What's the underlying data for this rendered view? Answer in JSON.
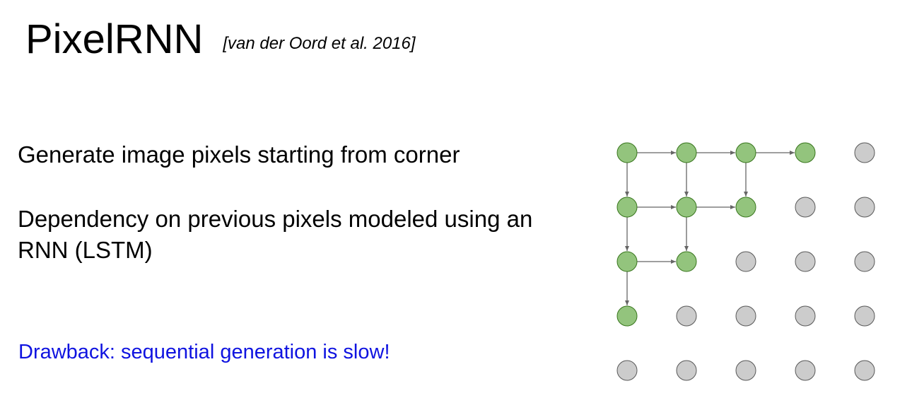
{
  "title": "PixelRNN",
  "citation": "[van der Oord et al. 2016]",
  "bullets": [
    "Generate image pixels starting from corner",
    "Dependency on previous pixels modeled using an RNN (LSTM)"
  ],
  "drawback": "Drawback: sequential generation is slow!",
  "colors": {
    "generated_fill": "#93c47d",
    "generated_stroke": "#38761d",
    "pending_fill": "#cccccc",
    "pending_stroke": "#595959",
    "arrow": "#666666",
    "drawback_text": "#0f13e0"
  },
  "pixel_grid": {
    "rows": 5,
    "cols": 5,
    "generated": [
      [
        true,
        true,
        true,
        true,
        false
      ],
      [
        true,
        true,
        true,
        false,
        false
      ],
      [
        true,
        true,
        false,
        false,
        false
      ],
      [
        true,
        false,
        false,
        false,
        false
      ],
      [
        false,
        false,
        false,
        false,
        false
      ]
    ],
    "arrows": [
      {
        "from": [
          0,
          0
        ],
        "to": [
          0,
          1
        ]
      },
      {
        "from": [
          0,
          1
        ],
        "to": [
          0,
          2
        ]
      },
      {
        "from": [
          0,
          2
        ],
        "to": [
          0,
          3
        ]
      },
      {
        "from": [
          0,
          0
        ],
        "to": [
          1,
          0
        ]
      },
      {
        "from": [
          0,
          1
        ],
        "to": [
          1,
          1
        ]
      },
      {
        "from": [
          0,
          2
        ],
        "to": [
          1,
          2
        ]
      },
      {
        "from": [
          1,
          0
        ],
        "to": [
          1,
          1
        ]
      },
      {
        "from": [
          1,
          1
        ],
        "to": [
          1,
          2
        ]
      },
      {
        "from": [
          1,
          0
        ],
        "to": [
          2,
          0
        ]
      },
      {
        "from": [
          1,
          1
        ],
        "to": [
          2,
          1
        ]
      },
      {
        "from": [
          2,
          0
        ],
        "to": [
          2,
          1
        ]
      },
      {
        "from": [
          2,
          0
        ],
        "to": [
          3,
          0
        ]
      }
    ]
  }
}
